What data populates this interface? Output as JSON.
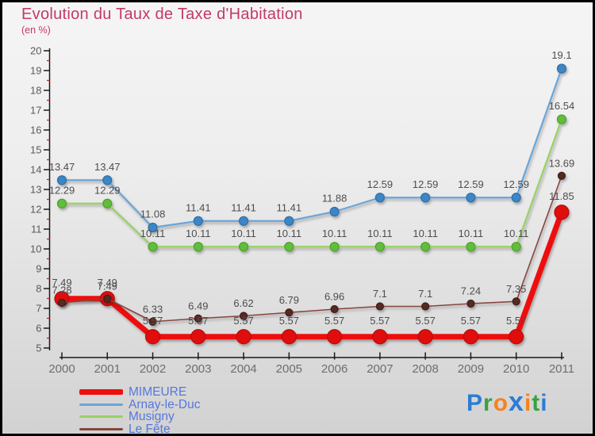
{
  "header": {
    "title": "Evolution du Taux de Taxe d'Habitation",
    "subtitle": "(en %)",
    "title_color": "#c43a64"
  },
  "chart_data": {
    "type": "line",
    "title": "Evolution du Taux de Taxe d'Habitation",
    "subtitle": "(en %)",
    "x": [
      2000,
      2001,
      2002,
      2003,
      2004,
      2005,
      2006,
      2007,
      2008,
      2009,
      2010,
      2011
    ],
    "ylim": [
      5,
      20
    ],
    "y_major_step": 1,
    "y_minor_step": 0.5,
    "grid": false,
    "legend_position": "bottom-left",
    "series": [
      {
        "name": "MIMEURE",
        "color": "#ee0f0f",
        "marker_color": "#e01010",
        "marker_stroke": "#b50d0d",
        "line_width": 7,
        "marker_radius": 9,
        "values": [
          7.49,
          7.49,
          5.57,
          5.57,
          5.57,
          5.57,
          5.57,
          5.57,
          5.57,
          5.57,
          5.57,
          11.85
        ]
      },
      {
        "name": "Arnay-le-Duc",
        "color": "#6aa5d8",
        "marker_color": "#3e86c6",
        "marker_stroke": "#2f6ea8",
        "line_width": 2.2,
        "marker_radius": 5.5,
        "values": [
          13.47,
          13.47,
          11.08,
          11.41,
          11.41,
          11.41,
          11.88,
          12.59,
          12.59,
          12.59,
          12.59,
          19.1
        ]
      },
      {
        "name": "Musigny",
        "color": "#97d264",
        "marker_color": "#62bd3e",
        "marker_stroke": "#4da02f",
        "line_width": 2.2,
        "marker_radius": 5.5,
        "values": [
          12.29,
          12.29,
          10.11,
          10.11,
          10.11,
          10.11,
          10.11,
          10.11,
          10.11,
          10.11,
          10.11,
          16.54
        ]
      },
      {
        "name": "Le Fête",
        "color": "#84463e",
        "marker_color": "#542a24",
        "marker_stroke": "#3f1f1b",
        "line_width": 1.6,
        "marker_radius": 4.5,
        "values": [
          7.28,
          7.49,
          6.33,
          6.49,
          6.62,
          6.79,
          6.96,
          7.1,
          7.1,
          7.24,
          7.35,
          13.69
        ]
      }
    ],
    "value_label_color": "#4d4d4d",
    "axis_color": "#1a1a1a",
    "y_tick_label_color": "#5a5a5a",
    "x_tick_label_color": "#6e6e6e",
    "minor_tick_color": "#cc2222"
  },
  "legend": {
    "text_color": "#5577dd"
  },
  "logo": {
    "name": "Proxiti",
    "letters": [
      {
        "ch": "P",
        "color": "#2b7cd3"
      },
      {
        "ch": "r",
        "color": "#3aa142"
      },
      {
        "ch": "o",
        "color": "#f58220"
      },
      {
        "ch": "x",
        "color": "#2b7cd3"
      },
      {
        "ch": "i",
        "color": "#f58220"
      },
      {
        "ch": "t",
        "color": "#3aa142"
      },
      {
        "ch": "i",
        "color": "#2b7cd3"
      }
    ]
  }
}
